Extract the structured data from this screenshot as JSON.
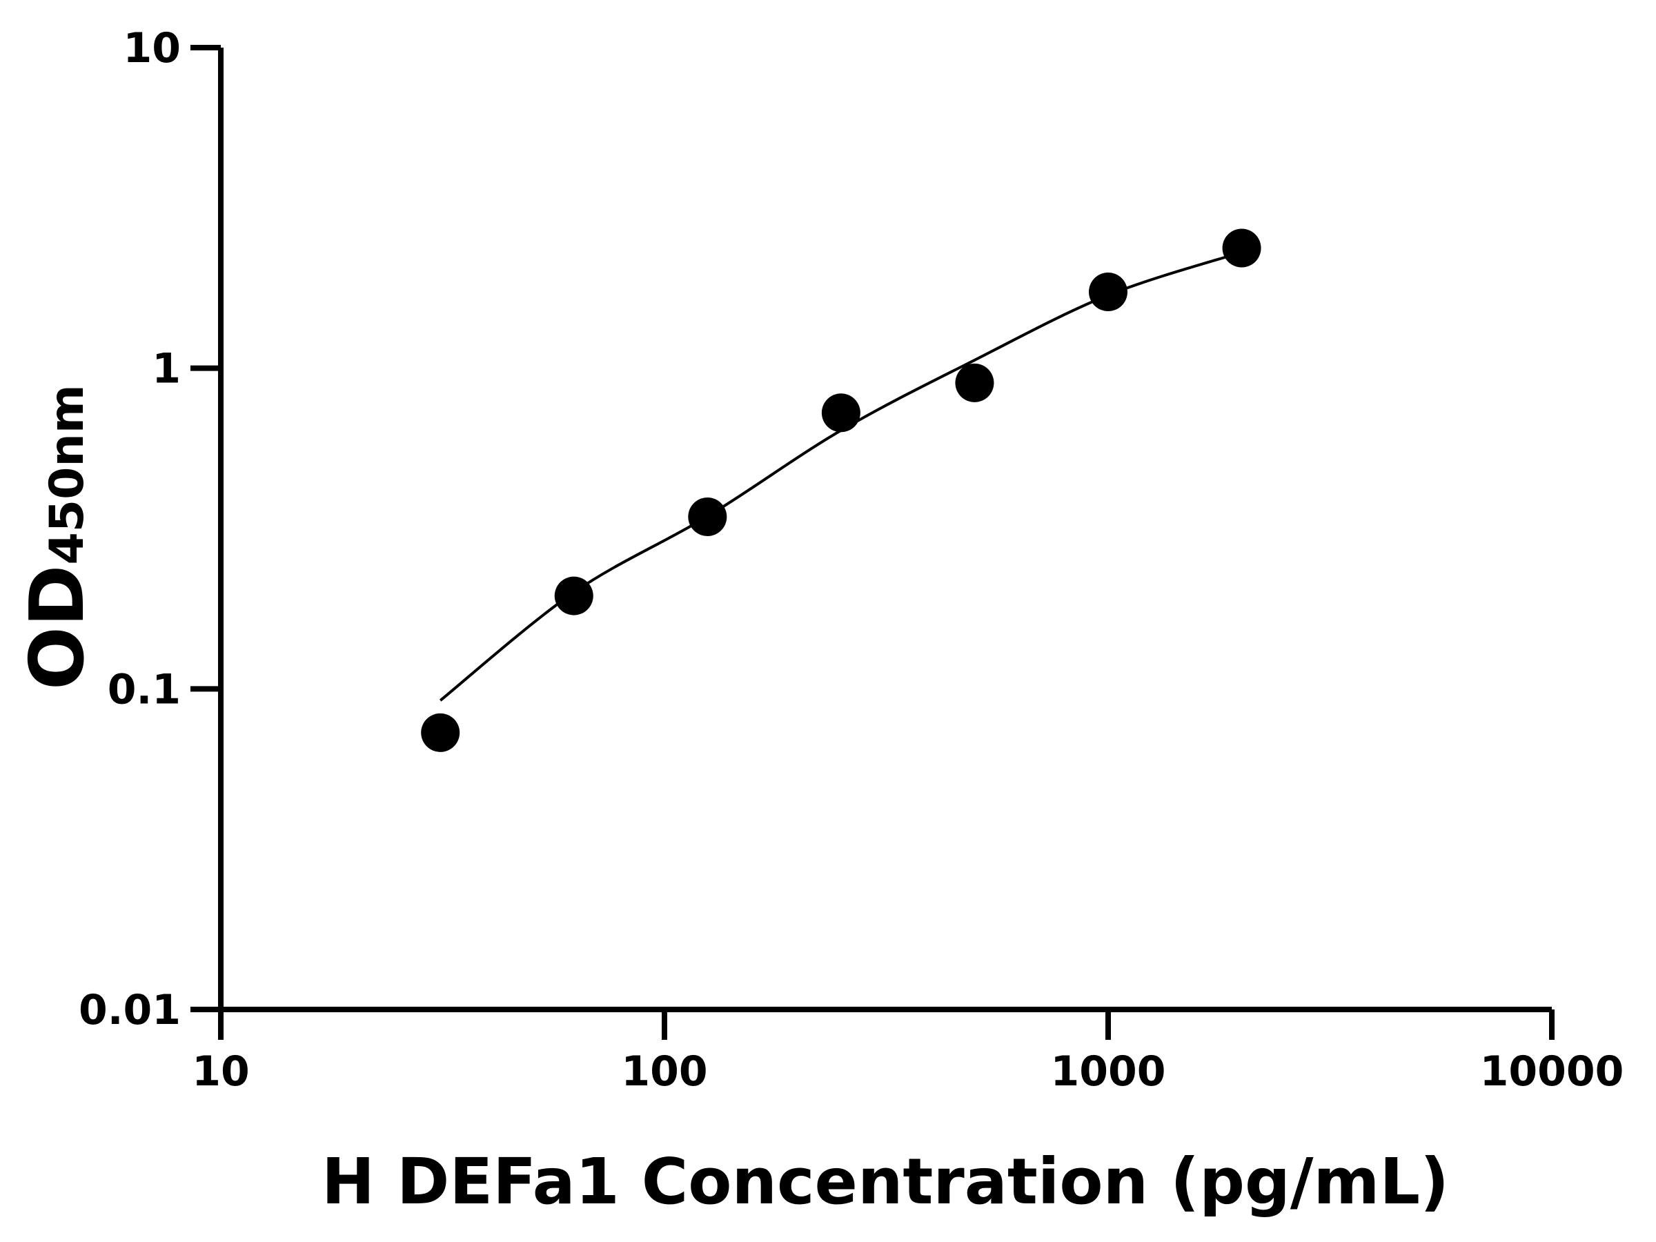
{
  "chart_data": {
    "type": "scatter",
    "title": "",
    "xlabel": "H DEFa1 Concentration (pg/mL)",
    "ylabel": {
      "main": "OD",
      "subscript": "450nm"
    },
    "x_scale": "log",
    "y_scale": "log",
    "xlim": [
      10,
      10000
    ],
    "ylim": [
      0.01,
      10
    ],
    "x_ticks": [
      {
        "value": 10,
        "label": "10"
      },
      {
        "value": 100,
        "label": "100"
      },
      {
        "value": 1000,
        "label": "1000"
      },
      {
        "value": 10000,
        "label": "10000"
      }
    ],
    "y_ticks": [
      {
        "value": 0.01,
        "label": "0.01"
      },
      {
        "value": 0.1,
        "label": "0.1"
      },
      {
        "value": 1,
        "label": "1"
      },
      {
        "value": 10,
        "label": "10"
      }
    ],
    "grid": false,
    "legend": "none",
    "points": [
      {
        "x": 31.25,
        "y": 0.073
      },
      {
        "x": 62.5,
        "y": 0.195
      },
      {
        "x": 125,
        "y": 0.344
      },
      {
        "x": 250,
        "y": 0.726
      },
      {
        "x": 500,
        "y": 0.9
      },
      {
        "x": 1000,
        "y": 1.73
      },
      {
        "x": 2000,
        "y": 2.37
      }
    ],
    "fit_curve": [
      {
        "x": 31.25,
        "y": 0.092
      },
      {
        "x": 62.5,
        "y": 0.2
      },
      {
        "x": 125,
        "y": 0.345
      },
      {
        "x": 250,
        "y": 0.64
      },
      {
        "x": 500,
        "y": 1.06
      },
      {
        "x": 1000,
        "y": 1.69
      },
      {
        "x": 2000,
        "y": 2.3
      }
    ],
    "colors": {
      "points": "#000000",
      "curve": "#000000",
      "axes": "#000000"
    }
  }
}
